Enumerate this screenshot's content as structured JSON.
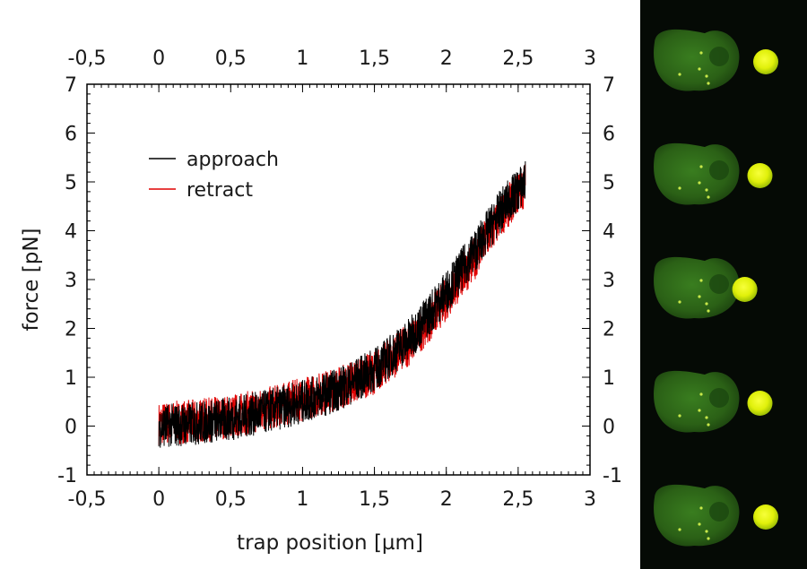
{
  "chart_data": {
    "type": "line",
    "title": "",
    "xlabel": "trap position [µm]",
    "ylabel": "force [pN]",
    "xlim": [
      -0.5,
      3
    ],
    "ylim": [
      -1,
      7
    ],
    "x_ticks": [
      "-0,5",
      "0",
      "0,5",
      "1",
      "1,5",
      "2",
      "2,5",
      "3"
    ],
    "y_ticks": [
      "-1",
      "0",
      "1",
      "2",
      "3",
      "4",
      "5",
      "6",
      "7"
    ],
    "top_axis_ticks": true,
    "right_axis_ticks": true,
    "grid": false,
    "legend_position": "upper-left",
    "noise_band_pN": 0.45,
    "series": [
      {
        "name": "approach",
        "color": "#000000",
        "x": [
          0,
          0.25,
          0.5,
          0.75,
          1.0,
          1.25,
          1.5,
          1.75,
          2.0,
          2.2,
          2.4,
          2.55
        ],
        "y": [
          0,
          0.05,
          0.15,
          0.3,
          0.5,
          0.75,
          1.15,
          1.8,
          2.75,
          3.6,
          4.5,
          5.0
        ]
      },
      {
        "name": "retract",
        "color": "#e00000",
        "x": [
          0,
          0.25,
          0.5,
          0.75,
          1.0,
          1.25,
          1.5,
          1.75,
          2.0,
          2.2,
          2.4,
          2.55
        ],
        "y": [
          0.05,
          0.1,
          0.2,
          0.35,
          0.55,
          0.78,
          1.1,
          1.7,
          2.6,
          3.45,
          4.4,
          4.95
        ]
      }
    ]
  },
  "micrographs": {
    "frame_count": 5,
    "cell_color": "#3c7a1e",
    "bead_color": "#e6f50a",
    "frame_bead_offsets": [
      0.6,
      0.55,
      0.42,
      0.55,
      0.6
    ]
  }
}
